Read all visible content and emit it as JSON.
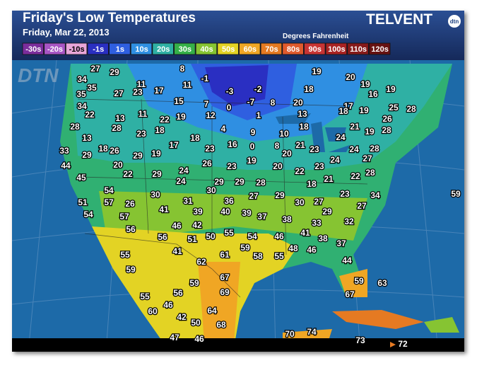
{
  "header": {
    "title": "Friday's Low Temperatures",
    "date": "Friday, Mar 22, 2013",
    "units": "Degrees Fahrenheit",
    "brand": "TELVENT",
    "brand_logo": "dtn"
  },
  "watermark": "DTN",
  "legend": [
    {
      "label": "-30s",
      "color": "#7b2d9c"
    },
    {
      "label": "-20s",
      "color": "#a855c4"
    },
    {
      "label": "-10s",
      "color": "#e9a6d9"
    },
    {
      "label": "-1s",
      "color": "#2a2fc2"
    },
    {
      "label": "1s",
      "color": "#2f5fe0"
    },
    {
      "label": "10s",
      "color": "#2f8fe2"
    },
    {
      "label": "20s",
      "color": "#2fb0a4"
    },
    {
      "label": "30s",
      "color": "#35b048"
    },
    {
      "label": "40s",
      "color": "#86c432"
    },
    {
      "label": "50s",
      "color": "#e3d324"
    },
    {
      "label": "60s",
      "color": "#f0a624"
    },
    {
      "label": "70s",
      "color": "#e57a22"
    },
    {
      "label": "80s",
      "color": "#e05a2e"
    },
    {
      "label": "90s",
      "color": "#c83434"
    },
    {
      "label": "100s",
      "color": "#a82222"
    },
    {
      "label": "110s",
      "color": "#861a1a"
    },
    {
      "label": "120s",
      "color": "#661212"
    }
  ],
  "temperatures": [
    27,
    29,
    8,
    19,
    20,
    19,
    19,
    34,
    35,
    11,
    -1,
    11,
    17,
    23,
    27,
    35,
    -3,
    -2,
    18,
    16,
    15,
    7,
    0,
    -7,
    8,
    20,
    34,
    22,
    17,
    18,
    19,
    25,
    28,
    11,
    13,
    22,
    19,
    12,
    1,
    13,
    26,
    28,
    28,
    18,
    23,
    4,
    9,
    10,
    18,
    21,
    19,
    28,
    13,
    18,
    24,
    18,
    26,
    17,
    23,
    16,
    0,
    8,
    21,
    23,
    24,
    28,
    33,
    29,
    29,
    19,
    20,
    27,
    44,
    20,
    26,
    23,
    19,
    20,
    23,
    24,
    22,
    24,
    29,
    22,
    45,
    22,
    28,
    24,
    29,
    29,
    28,
    21,
    18,
    54,
    30,
    30,
    36,
    27,
    29,
    23,
    34,
    59,
    51,
    57,
    26,
    31,
    30,
    27,
    27,
    54,
    57,
    41,
    39,
    40,
    39,
    37,
    38,
    29,
    56,
    46,
    42,
    33,
    32,
    56,
    51,
    50,
    55,
    54,
    46,
    41,
    38,
    37,
    59,
    48,
    46,
    55,
    41,
    61,
    58,
    55,
    44,
    62,
    59,
    67,
    59,
    59,
    63,
    55,
    56,
    69,
    67,
    46,
    60,
    64,
    42,
    50,
    68,
    70,
    74,
    47,
    46,
    73,
    72
  ]
}
